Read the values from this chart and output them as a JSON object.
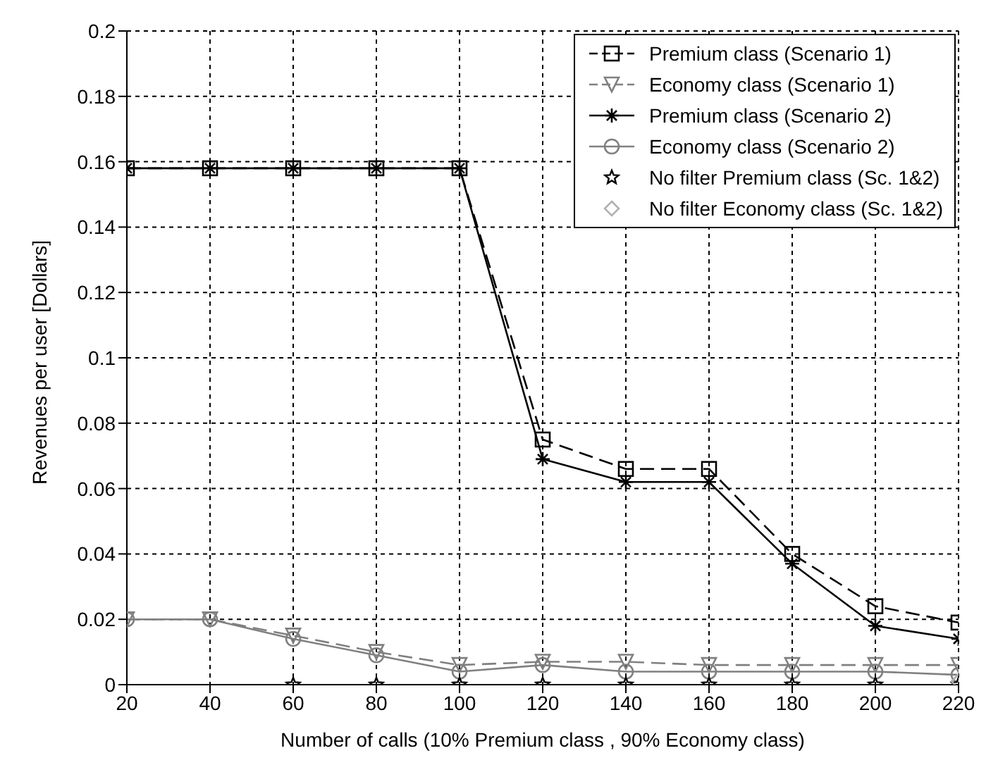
{
  "chart_data": {
    "type": "line",
    "xlabel": "Number of calls (10% Premium class , 90% Economy class)",
    "ylabel": "Revenues per user [Dollars]",
    "x": [
      20,
      40,
      60,
      80,
      100,
      120,
      140,
      160,
      180,
      200,
      220
    ],
    "xlim": [
      20,
      220
    ],
    "xticks": [
      20,
      40,
      60,
      80,
      100,
      120,
      140,
      160,
      180,
      200,
      220
    ],
    "ylim": [
      0,
      0.2
    ],
    "yticks": [
      0,
      0.02,
      0.04,
      0.06,
      0.08,
      0.1,
      0.12,
      0.14,
      0.16,
      0.18,
      0.2
    ],
    "grid": true,
    "legend": "top right",
    "series": [
      {
        "name": "Premium class (Scenario 1)",
        "color": "#000000",
        "marker": "square",
        "line_style": "dashed",
        "values": [
          0.158,
          0.158,
          0.158,
          0.158,
          0.158,
          0.075,
          0.066,
          0.066,
          0.04,
          0.024,
          0.019
        ]
      },
      {
        "name": "Economy class (Scenario 1)",
        "color": "#808080",
        "marker": "triangle",
        "line_style": "dashed",
        "values": [
          0.02,
          0.02,
          0.015,
          0.01,
          0.006,
          0.007,
          0.007,
          0.006,
          0.006,
          0.006,
          0.006
        ]
      },
      {
        "name": "Premium class (Scenario 2)",
        "color": "#000000",
        "marker": "cross",
        "line_style": "solid",
        "values": [
          0.158,
          0.158,
          0.158,
          0.158,
          0.158,
          0.069,
          0.062,
          0.062,
          0.037,
          0.018,
          0.014
        ]
      },
      {
        "name": "Economy class (Scenario 2)",
        "color": "#808080",
        "marker": "circle",
        "line_style": "solid",
        "values": [
          0.02,
          0.02,
          0.014,
          0.009,
          0.004,
          0.006,
          0.004,
          0.004,
          0.004,
          0.004,
          0.003
        ]
      },
      {
        "name": "No filter Premium class (Sc. 1&2)",
        "type": "scatter",
        "color": "#000000",
        "marker": "star",
        "values": [
          null,
          null,
          0,
          0,
          0,
          0,
          0,
          0,
          0,
          0,
          0
        ]
      },
      {
        "name": "No filter Economy class (Sc. 1&2)",
        "type": "scatter",
        "color": "#b0b0b0",
        "marker": "diamond",
        "values": [
          null,
          null,
          null,
          null,
          null,
          null,
          null,
          null,
          null,
          null,
          0.001
        ]
      }
    ]
  }
}
